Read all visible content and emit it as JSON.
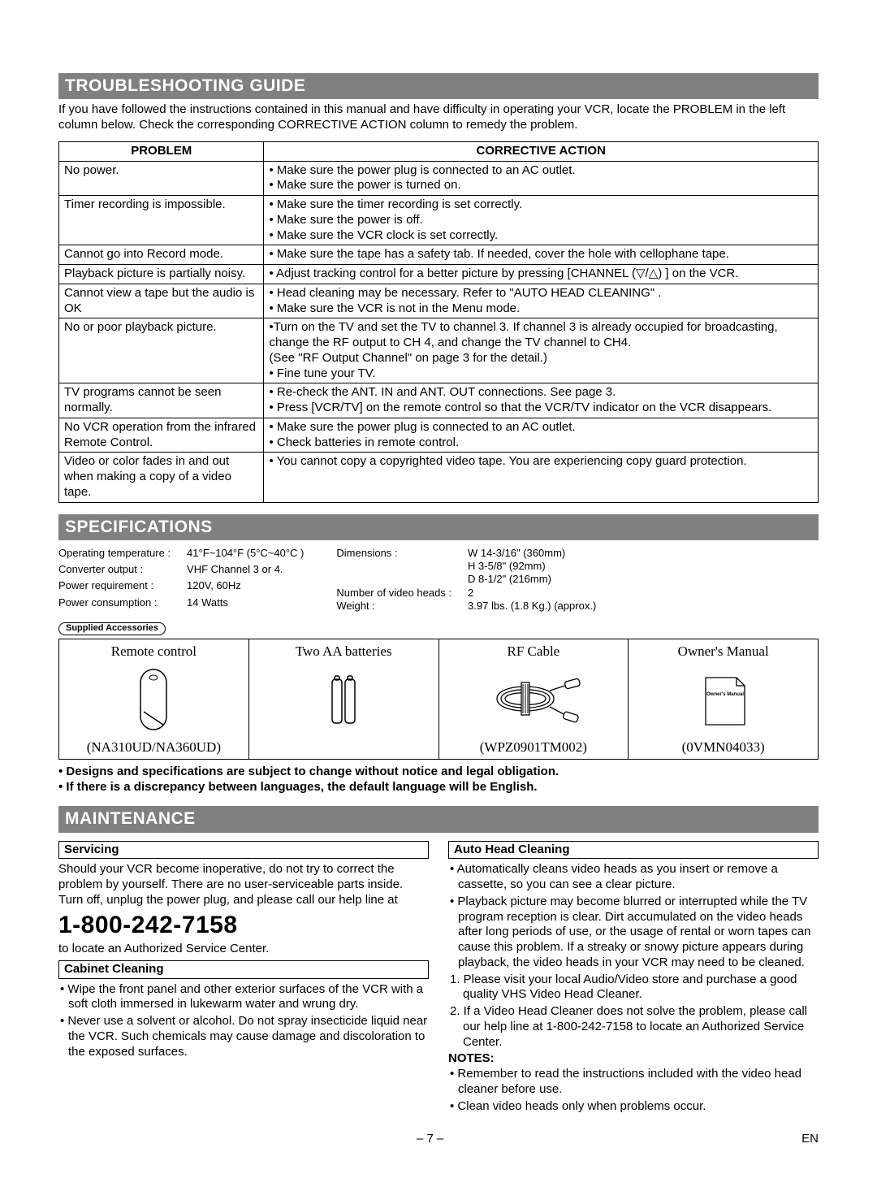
{
  "sections": {
    "troubleshooting": "TROUBLESHOOTING GUIDE",
    "specifications": "SPECIFICATIONS",
    "maintenance": "MAINTENANCE"
  },
  "intro": "If you have followed the instructions contained in this manual and have difficulty in operating your VCR, locate the PROBLEM in the left column below. Check the corresponding CORRECTIVE ACTION column to remedy the problem.",
  "trouble_headers": {
    "problem": "PROBLEM",
    "action": "CORRECTIVE ACTION"
  },
  "trouble_rows": [
    {
      "p": "No power.",
      "a": "• Make sure the power plug is connected to an AC outlet.\n• Make sure the power is turned on."
    },
    {
      "p": "Timer recording is impossible.",
      "a": "• Make sure the timer recording is set correctly.\n• Make sure the power is off.\n• Make sure the VCR clock is set correctly."
    },
    {
      "p": "Cannot go into Record mode.",
      "a": "• Make sure the tape has a safety tab. If needed, cover the hole with cellophane tape."
    },
    {
      "p": "Playback picture is partially noisy.",
      "a": "• Adjust tracking control for a better picture by pressing [CHANNEL (▽/△) ] on the VCR."
    },
    {
      "p": "Cannot view a tape but the audio is OK",
      "a": "• Head cleaning may be necessary. Refer to \"AUTO HEAD CLEANING\" .\n• Make sure the VCR is not in the Menu mode."
    },
    {
      "p": "No or poor playback picture.",
      "a": "•Turn on the TV and set the TV to channel 3. If channel 3 is already occupied for broadcasting, change the RF output to CH 4, and change the TV channel to CH4.\n  (See \"RF Output Channel\" on page 3 for the detail.)\n• Fine tune your TV."
    },
    {
      "p": "TV programs cannot be seen normally.",
      "a": "• Re-check the ANT. IN and ANT. OUT connections. See page 3.\n• Press [VCR/TV] on the remote control so that the VCR/TV indicator on the VCR disappears."
    },
    {
      "p": "No VCR operation from the infrared Remote Control.",
      "a": "• Make sure the power plug is connected to an AC outlet.\n• Check batteries in remote control."
    },
    {
      "p": "Video or color fades in and out when making a copy of a video tape.",
      "a": "• You cannot copy a copyrighted video tape. You are experiencing copy guard protection."
    }
  ],
  "specs_left": [
    {
      "label": "Operating temperature :",
      "val": "41°F~104°F (5°C~40°C )"
    },
    {
      "label": "Converter output :",
      "val": "VHF Channel 3 or 4."
    },
    {
      "label": "Power requirement :",
      "val": "120V, 60Hz"
    },
    {
      "label": "Power consumption :",
      "val": "14 Watts"
    }
  ],
  "specs_right": [
    {
      "label": "Dimensions :",
      "val": "W 14-3/16\" (360mm)"
    },
    {
      "label": "",
      "val": "H 3-5/8\" (92mm)"
    },
    {
      "label": "",
      "val": "D 8-1/2\" (216mm)"
    },
    {
      "label": "Number of video heads :",
      "val": "2"
    },
    {
      "label": "Weight :",
      "val": "3.97 lbs. (1.8 Kg.) (approx.)"
    }
  ],
  "supplied_label": "Supplied Accessories",
  "accessories": {
    "headers": [
      "Remote control",
      "Two AA batteries",
      "RF Cable",
      "Owner's Manual"
    ],
    "footers": [
      "(NA310UD/NA360UD)",
      "",
      "(WPZ0901TM002)",
      "(0VMN04033)"
    ],
    "manual_text": "Owner's Manual"
  },
  "spec_notes": "• Designs and specifications are subject to change without notice and legal obligation.\n• If there is a discrepancy between languages, the default language will be English.",
  "maint": {
    "servicing_h": "Servicing",
    "servicing_p": "Should your VCR become inoperative, do not try to correct the problem by yourself.  There are no user-serviceable parts inside. Turn off, unplug the power plug, and please call our help line at",
    "phone": "1-800-242-7158",
    "servicing_after": "to locate an Authorized Service Center.",
    "cabinet_h": "Cabinet Cleaning",
    "cabinet_b1": "Wipe the front panel and other exterior surfaces of the VCR with a soft cloth immersed in lukewarm water and wrung dry.",
    "cabinet_b2": "Never use a solvent or alcohol. Do not spray insecticide liquid near the VCR. Such chemicals may cause damage and discoloration to the exposed surfaces.",
    "auto_h": "Auto Head Cleaning",
    "auto_b1": "Automatically cleans video heads as you insert or remove a cassette, so you can see a clear picture.",
    "auto_b2": "Playback picture may become blurred or interrupted while the TV program reception is clear. Dirt accumulated on the video heads after long periods of use, or the usage of rental or worn tapes can cause this problem. If a streaky or snowy picture appears during playback, the video heads in your VCR may need to be cleaned.",
    "auto_n1": "1. Please visit your local Audio/Video store and purchase a good quality VHS Video Head Cleaner.",
    "auto_n2": "2. If a Video Head Cleaner does not solve the problem, please call our help line at 1-800-242-7158 to locate an Authorized Service Center.",
    "notes_h": "NOTES:",
    "notes_b1": "Remember to read the instructions included with the video head cleaner before use.",
    "notes_b2": "Clean video heads only when problems occur."
  },
  "footer": {
    "page": "– 7 –",
    "lang": "EN"
  }
}
